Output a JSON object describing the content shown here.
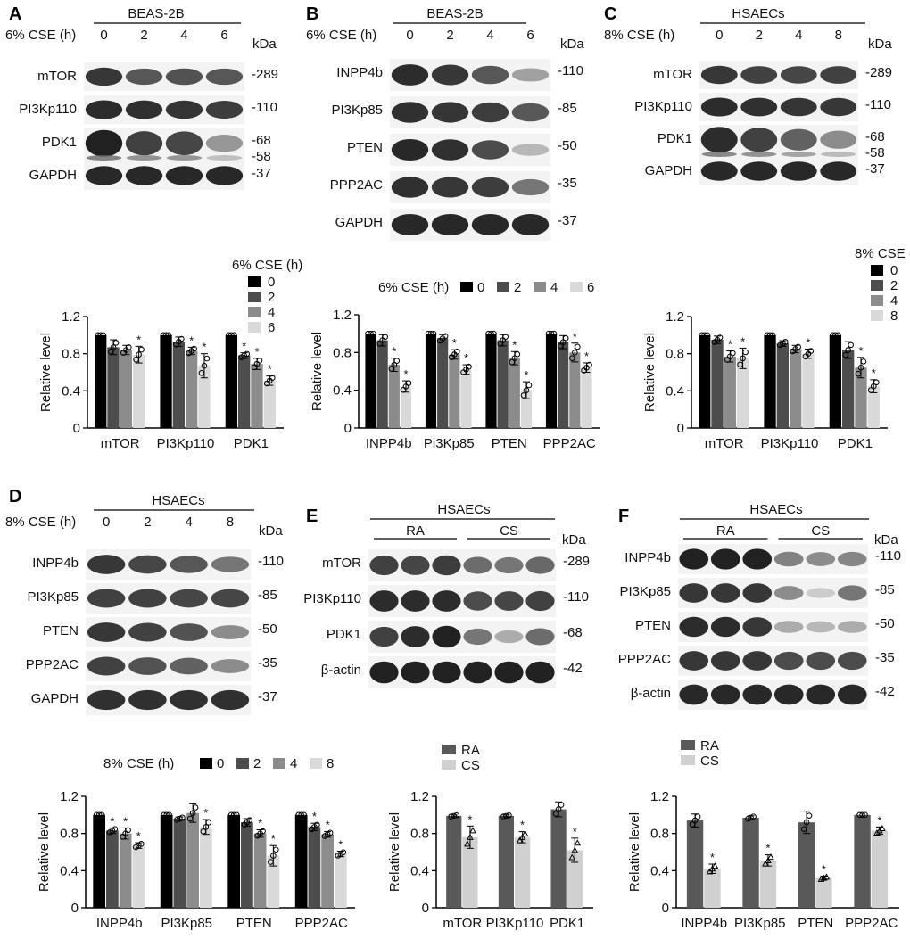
{
  "figure": {
    "panels": [
      {
        "letter": "A",
        "cell": "BEAS-2B",
        "treatment": "6% CSE (h)",
        "lanes": [
          "0",
          "2",
          "4",
          "6"
        ],
        "kda_label": "kDa",
        "blots": [
          {
            "name": "mTOR",
            "kda": [
              "-289"
            ],
            "intensity": [
              0.85,
              0.7,
              0.72,
              0.7
            ]
          },
          {
            "name": "PI3Kp110",
            "kda": [
              "-110"
            ],
            "intensity": [
              0.9,
              0.88,
              0.86,
              0.82
            ]
          },
          {
            "name": "PDK1",
            "kda": [
              "-68",
              "-58"
            ],
            "intensity": [
              0.95,
              0.8,
              0.78,
              0.4
            ]
          },
          {
            "name": "GAPDH",
            "kda": [
              "-37"
            ],
            "intensity": [
              0.92,
              0.92,
              0.92,
              0.92
            ]
          }
        ]
      },
      {
        "letter": "B",
        "cell": "BEAS-2B",
        "treatment": "6% CSE (h)",
        "lanes": [
          "0",
          "2",
          "4",
          "6"
        ],
        "kda_label": "kDa",
        "blots": [
          {
            "name": "INPP4b",
            "kda": [
              "-110"
            ],
            "intensity": [
              0.9,
              0.85,
              0.7,
              0.35
            ]
          },
          {
            "name": "PI3Kp85",
            "kda": [
              "-85"
            ],
            "intensity": [
              0.88,
              0.86,
              0.82,
              0.7
            ]
          },
          {
            "name": "PTEN",
            "kda": [
              "-50"
            ],
            "intensity": [
              0.92,
              0.88,
              0.75,
              0.25
            ]
          },
          {
            "name": "PPP2AC",
            "kda": [
              "-35"
            ],
            "intensity": [
              0.88,
              0.85,
              0.82,
              0.55
            ]
          },
          {
            "name": "GAPDH",
            "kda": [
              "-37"
            ],
            "intensity": [
              0.92,
              0.92,
              0.92,
              0.92
            ]
          }
        ]
      },
      {
        "letter": "C",
        "cell": "HSAECs",
        "treatment": "8% CSE (h)",
        "lanes": [
          "0",
          "2",
          "4",
          "8"
        ],
        "kda_label": "kDa",
        "blots": [
          {
            "name": "mTOR",
            "kda": [
              "-289"
            ],
            "intensity": [
              0.85,
              0.8,
              0.78,
              0.8
            ]
          },
          {
            "name": "PI3Kp110",
            "kda": [
              "-110"
            ],
            "intensity": [
              0.9,
              0.88,
              0.86,
              0.85
            ]
          },
          {
            "name": "PDK1",
            "kda": [
              "-68",
              "-58"
            ],
            "intensity": [
              0.9,
              0.8,
              0.65,
              0.45
            ]
          },
          {
            "name": "GAPDH",
            "kda": [
              "-37"
            ],
            "intensity": [
              0.92,
              0.92,
              0.92,
              0.92
            ]
          }
        ]
      },
      {
        "letter": "D",
        "cell": "HSAECs",
        "treatment": "8% CSE (h)",
        "lanes": [
          "0",
          "2",
          "4",
          "8"
        ],
        "kda_label": "kDa",
        "blots": [
          {
            "name": "INPP4b",
            "kda": [
              "-110"
            ],
            "intensity": [
              0.85,
              0.78,
              0.7,
              0.55
            ]
          },
          {
            "name": "PI3Kp85",
            "kda": [
              "-85"
            ],
            "intensity": [
              0.8,
              0.8,
              0.78,
              0.78
            ]
          },
          {
            "name": "PTEN",
            "kda": [
              "-50"
            ],
            "intensity": [
              0.85,
              0.8,
              0.72,
              0.45
            ]
          },
          {
            "name": "PPP2AC",
            "kda": [
              "-35"
            ],
            "intensity": [
              0.8,
              0.72,
              0.65,
              0.45
            ]
          },
          {
            "name": "GAPDH",
            "kda": [
              "-37"
            ],
            "intensity": [
              0.88,
              0.88,
              0.88,
              0.88
            ]
          }
        ]
      },
      {
        "letter": "E",
        "cell": "HSAECs",
        "groups": [
          "RA",
          "CS"
        ],
        "kda_label": "kDa",
        "blots": [
          {
            "name": "mTOR",
            "kda": [
              "-289"
            ],
            "intensity": [
              0.8,
              0.78,
              0.82,
              0.6,
              0.55,
              0.62
            ]
          },
          {
            "name": "PI3Kp110",
            "kda": [
              "-110"
            ],
            "intensity": [
              0.9,
              0.9,
              0.9,
              0.75,
              0.78,
              0.8
            ]
          },
          {
            "name": "PDK1",
            "kda": [
              "-68"
            ],
            "intensity": [
              0.8,
              0.9,
              0.95,
              0.55,
              0.3,
              0.6
            ]
          },
          {
            "name": "β-actin",
            "kda": [
              "-42"
            ],
            "intensity": [
              0.95,
              0.95,
              0.95,
              0.95,
              0.95,
              0.95
            ]
          }
        ]
      },
      {
        "letter": "F",
        "cell": "HSAECs",
        "groups": [
          "RA",
          "CS"
        ],
        "kda_label": "kDa",
        "blots": [
          {
            "name": "INPP4b",
            "kda": [
              "-110"
            ],
            "intensity": [
              0.95,
              0.95,
              0.95,
              0.5,
              0.45,
              0.48
            ]
          },
          {
            "name": "PI3Kp85",
            "kda": [
              "-85"
            ],
            "intensity": [
              0.85,
              0.85,
              0.85,
              0.45,
              0.15,
              0.55
            ]
          },
          {
            "name": "PTEN",
            "kda": [
              "-50"
            ],
            "intensity": [
              0.9,
              0.9,
              0.85,
              0.3,
              0.25,
              0.3
            ]
          },
          {
            "name": "PPP2AC",
            "kda": [
              "-35"
            ],
            "intensity": [
              0.85,
              0.85,
              0.85,
              0.75,
              0.75,
              0.75
            ]
          },
          {
            "name": "β-actin",
            "kda": [
              "-42"
            ],
            "intensity": [
              0.92,
              0.92,
              0.92,
              0.92,
              0.92,
              0.92
            ]
          }
        ]
      }
    ]
  },
  "chart_data": [
    {
      "panel": "A",
      "type": "bar",
      "ylabel": "Relative level",
      "ylim": [
        0,
        1.2
      ],
      "yticks": [
        "0",
        "0.4",
        "0.8",
        "1.2"
      ],
      "legend_title": "6% CSE (h)",
      "legend_placement": "top-right",
      "categories": [
        "mTOR",
        "PI3Kp110",
        "PDK1"
      ],
      "series": [
        {
          "name": "0",
          "color": "#000000",
          "values": [
            1.0,
            1.0,
            1.0
          ],
          "err": [
            0,
            0,
            0
          ],
          "sig": [
            false,
            false,
            false
          ]
        },
        {
          "name": "2",
          "color": "#4d4d4d",
          "values": [
            0.87,
            0.93,
            0.78
          ],
          "err": [
            0.08,
            0.05,
            0.03
          ],
          "sig": [
            false,
            false,
            true
          ]
        },
        {
          "name": "4",
          "color": "#8c8c8c",
          "values": [
            0.84,
            0.83,
            0.69
          ],
          "err": [
            0.05,
            0.04,
            0.06
          ],
          "sig": [
            false,
            true,
            true
          ]
        },
        {
          "name": "6",
          "color": "#d9d9d9",
          "values": [
            0.79,
            0.67,
            0.51
          ],
          "err": [
            0.09,
            0.13,
            0.05
          ],
          "sig": [
            true,
            true,
            true
          ]
        }
      ]
    },
    {
      "panel": "B",
      "type": "bar",
      "ylabel": "Relative level",
      "ylim": [
        0,
        1.2
      ],
      "yticks": [
        "0",
        "0.4",
        "0.8",
        "1.2"
      ],
      "legend_title": "6% CSE (h)",
      "legend_placement": "top",
      "categories": [
        "INPP4b",
        "Pi3Kp85",
        "PTEN",
        "PPP2AC"
      ],
      "series": [
        {
          "name": "0",
          "color": "#000000",
          "values": [
            1.0,
            1.0,
            1.0,
            1.0
          ],
          "err": [
            0,
            0,
            0,
            0
          ],
          "sig": [
            false,
            false,
            false,
            false
          ]
        },
        {
          "name": "2",
          "color": "#4d4d4d",
          "values": [
            0.93,
            0.95,
            0.93,
            0.91
          ],
          "err": [
            0.06,
            0.04,
            0.06,
            0.07
          ],
          "sig": [
            false,
            false,
            false,
            false
          ]
        },
        {
          "name": "4",
          "color": "#8c8c8c",
          "values": [
            0.67,
            0.78,
            0.74,
            0.8
          ],
          "err": [
            0.07,
            0.05,
            0.07,
            0.1
          ],
          "sig": [
            true,
            true,
            true,
            true
          ]
        },
        {
          "name": "6",
          "color": "#d9d9d9",
          "values": [
            0.44,
            0.62,
            0.4,
            0.64
          ],
          "err": [
            0.06,
            0.05,
            0.09,
            0.05
          ],
          "sig": [
            true,
            true,
            true,
            true
          ]
        }
      ]
    },
    {
      "panel": "C",
      "type": "bar",
      "ylabel": "Relative level",
      "ylim": [
        0,
        1.2
      ],
      "yticks": [
        "0",
        "0.4",
        "0.8",
        "1.2"
      ],
      "legend_title": "8% CSE (h)",
      "legend_placement": "top-right",
      "categories": [
        "mTOR",
        "PI3Kp110",
        "PDK1"
      ],
      "series": [
        {
          "name": "0",
          "color": "#000000",
          "values": [
            1.0,
            1.0,
            1.0
          ],
          "err": [
            0,
            0,
            0
          ],
          "sig": [
            false,
            false,
            false
          ]
        },
        {
          "name": "2",
          "color": "#4d4d4d",
          "values": [
            0.95,
            0.91,
            0.84
          ],
          "err": [
            0.04,
            0.03,
            0.09
          ],
          "sig": [
            false,
            false,
            false
          ]
        },
        {
          "name": "4",
          "color": "#8c8c8c",
          "values": [
            0.77,
            0.85,
            0.65
          ],
          "err": [
            0.06,
            0.04,
            0.11
          ],
          "sig": [
            true,
            false,
            true
          ]
        },
        {
          "name": "8",
          "color": "#d9d9d9",
          "values": [
            0.75,
            0.8,
            0.45
          ],
          "err": [
            0.11,
            0.05,
            0.07
          ],
          "sig": [
            true,
            true,
            true
          ]
        }
      ]
    },
    {
      "panel": "D",
      "type": "bar",
      "ylabel": "Relative level",
      "ylim": [
        0,
        1.2
      ],
      "yticks": [
        "0",
        "0.4",
        "0.8",
        "1.2"
      ],
      "legend_title": "8% CSE (h)",
      "legend_placement": "top",
      "categories": [
        "INPP4b",
        "PI3Kp85",
        "PTEN",
        "PPP2AC"
      ],
      "series": [
        {
          "name": "0",
          "color": "#000000",
          "values": [
            1.0,
            1.0,
            1.0,
            1.0
          ],
          "err": [
            0,
            0,
            0,
            0
          ],
          "sig": [
            false,
            false,
            false,
            false
          ]
        },
        {
          "name": "2",
          "color": "#4d4d4d",
          "values": [
            0.83,
            0.96,
            0.92,
            0.87
          ],
          "err": [
            0.03,
            0.02,
            0.04,
            0.04
          ],
          "sig": [
            true,
            false,
            false,
            true
          ]
        },
        {
          "name": "4",
          "color": "#8c8c8c",
          "values": [
            0.8,
            1.02,
            0.8,
            0.79
          ],
          "err": [
            0.06,
            0.1,
            0.04,
            0.03
          ],
          "sig": [
            true,
            false,
            true,
            true
          ]
        },
        {
          "name": "8",
          "color": "#d9d9d9",
          "values": [
            0.67,
            0.87,
            0.56,
            0.58
          ],
          "err": [
            0.03,
            0.08,
            0.11,
            0.03
          ],
          "sig": [
            true,
            true,
            true,
            true
          ]
        }
      ]
    },
    {
      "panel": "E",
      "type": "bar",
      "ylabel": "Relative level",
      "ylim": [
        0,
        1.2
      ],
      "yticks": [
        "0",
        "0.4",
        "0.8",
        "1.2"
      ],
      "legend_placement": "top-left",
      "categories": [
        "mTOR",
        "PI3Kp110",
        "PDK1"
      ],
      "series": [
        {
          "name": "RA",
          "color": "#595959",
          "values": [
            0.99,
            0.99,
            1.06
          ],
          "err": [
            0.01,
            0.01,
            0.08
          ],
          "sig": [
            false,
            false,
            false
          ],
          "marker": "circle"
        },
        {
          "name": "CS",
          "color": "#d0d0d0",
          "values": [
            0.76,
            0.76,
            0.62
          ],
          "err": [
            0.12,
            0.06,
            0.13
          ],
          "sig": [
            true,
            true,
            true
          ],
          "marker": "triangle"
        }
      ]
    },
    {
      "panel": "F",
      "type": "bar",
      "ylabel": "Relative level",
      "ylim": [
        0,
        1.2
      ],
      "yticks": [
        "0",
        "0.4",
        "0.8",
        "1.2"
      ],
      "legend_placement": "top-left",
      "categories": [
        "INPP4b",
        "PI3Kp85",
        "PTEN",
        "PPP2AC"
      ],
      "series": [
        {
          "name": "RA",
          "color": "#595959",
          "values": [
            0.94,
            0.97,
            0.92,
            1.0
          ],
          "err": [
            0.07,
            0.02,
            0.12,
            0.0
          ],
          "sig": [
            false,
            false,
            false,
            false
          ],
          "marker": "circle"
        },
        {
          "name": "CS",
          "color": "#d0d0d0",
          "values": [
            0.42,
            0.51,
            0.32,
            0.83
          ],
          "err": [
            0.05,
            0.06,
            0.02,
            0.04
          ],
          "sig": [
            true,
            true,
            true,
            true
          ],
          "marker": "triangle"
        }
      ]
    }
  ]
}
